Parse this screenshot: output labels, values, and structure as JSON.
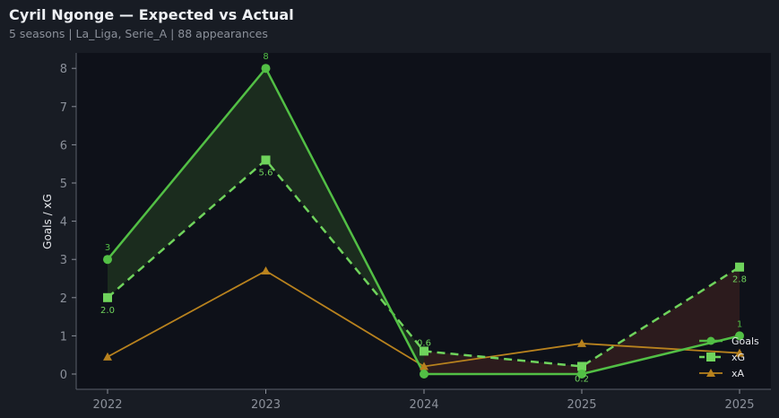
{
  "header": {
    "title": "Cyril Ngonge — Expected vs Actual",
    "subtitle": "5 seasons | La_Liga, Serie_A | 88 appearances"
  },
  "colors": {
    "background": "#181c24",
    "plot_bg": "#0e1119",
    "goals": "#52bf45",
    "xg": "#6fd35c",
    "xa": "#b8821e",
    "overperf_fill": "#1c2e1f",
    "underperf_fill": "#2e1c1e"
  },
  "chart_data": {
    "type": "line",
    "title": "Cyril Ngonge — Expected vs Actual",
    "subtitle": "5 seasons | La_Liga, Serie_A | 88 appearances",
    "xlabel": "",
    "ylabel": "Goals / xG",
    "categories": [
      "2022",
      "2023",
      "2024",
      "2025",
      "2025"
    ],
    "ylim": [
      -0.4,
      8.4
    ],
    "yticks": [
      0,
      1,
      2,
      3,
      4,
      5,
      6,
      7,
      8
    ],
    "grid": false,
    "legend_position": "lower right",
    "series": [
      {
        "name": "Goals",
        "values": [
          3,
          8,
          0,
          0,
          1
        ],
        "labels": [
          "3",
          "8",
          "",
          "",
          "1"
        ],
        "marker": "circle",
        "style": "solid"
      },
      {
        "name": "xG",
        "values": [
          2.0,
          5.6,
          0.6,
          0.2,
          2.8
        ],
        "labels": [
          "2.0",
          "5.6",
          "0.6",
          "0.2",
          "2.8"
        ],
        "marker": "square",
        "style": "dashed"
      },
      {
        "name": "xA",
        "values": [
          0.45,
          2.7,
          0.2,
          0.8,
          0.55
        ],
        "marker": "triangle",
        "style": "solid"
      }
    ],
    "annotations": [
      "shaded green where Goals > xG",
      "shaded red where Goals < xG"
    ]
  }
}
